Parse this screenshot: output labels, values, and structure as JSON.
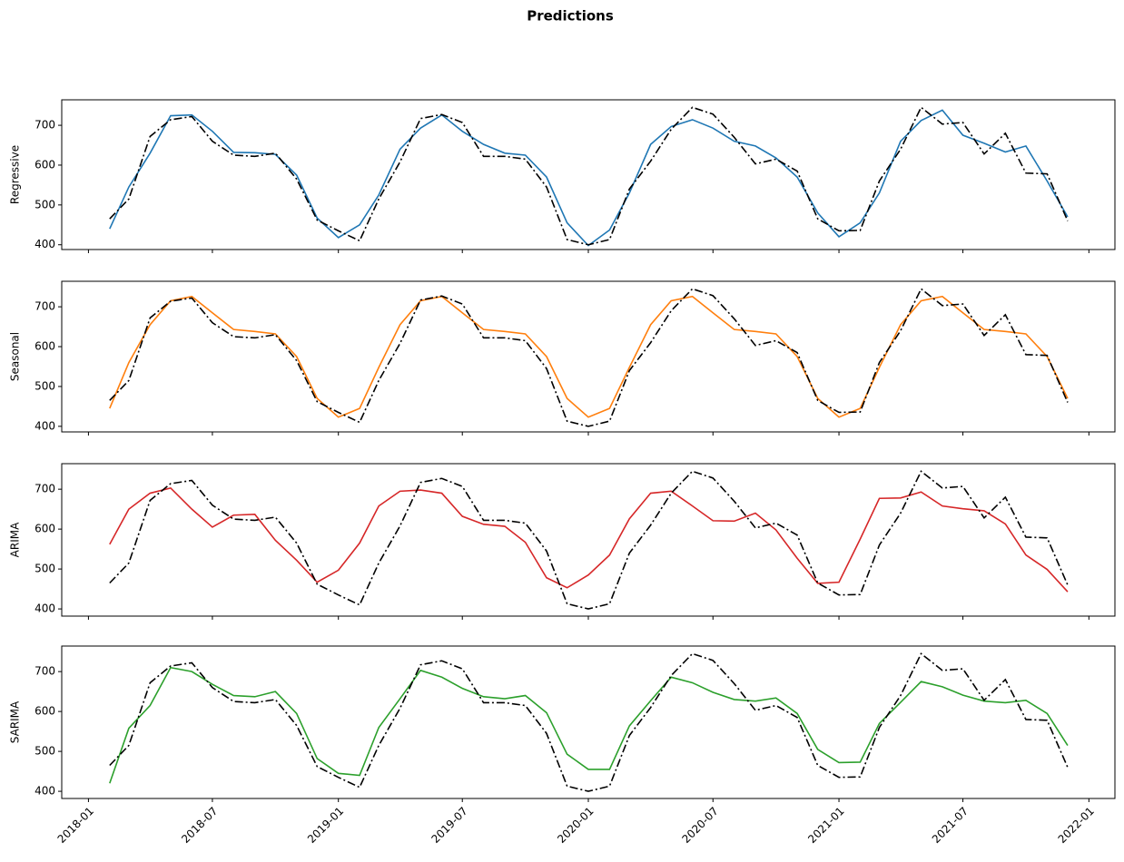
{
  "title": "Predictions",
  "chart_data": [
    {
      "type": "line",
      "ylabel": "Regressive",
      "x": [
        "2018-02",
        "2018-03",
        "2018-04",
        "2018-05",
        "2018-06",
        "2018-07",
        "2018-08",
        "2018-09",
        "2018-10",
        "2018-11",
        "2018-12",
        "2019-01",
        "2019-02",
        "2019-03",
        "2019-04",
        "2019-05",
        "2019-06",
        "2019-07",
        "2019-08",
        "2019-09",
        "2019-10",
        "2019-11",
        "2019-12",
        "2020-01",
        "2020-02",
        "2020-03",
        "2020-04",
        "2020-05",
        "2020-06",
        "2020-07",
        "2020-08",
        "2020-09",
        "2020-10",
        "2020-11",
        "2020-12",
        "2021-01",
        "2021-02",
        "2021-03",
        "2021-04",
        "2021-05",
        "2021-06",
        "2021-07",
        "2021-08",
        "2021-09",
        "2021-10",
        "2021-11",
        "2021-12"
      ],
      "series": [
        {
          "color": "#1f77b4",
          "style": "solid",
          "values": [
            440,
            545,
            630,
            724,
            726,
            685,
            632,
            631,
            627,
            575,
            467,
            418,
            450,
            525,
            640,
            693,
            726,
            685,
            652,
            630,
            625,
            570,
            455,
            398,
            437,
            530,
            652,
            697,
            714,
            693,
            660,
            648,
            618,
            570,
            480,
            420,
            455,
            530,
            660,
            712,
            738,
            675,
            655,
            633,
            648,
            560,
            470
          ]
        },
        {
          "color": "#000000",
          "style": "dashdot",
          "values": [
            465,
            515,
            672,
            714,
            722,
            660,
            625,
            622,
            630,
            565,
            462,
            435,
            410,
            515,
            608,
            717,
            727,
            707,
            622,
            622,
            615,
            545,
            413,
            400,
            413,
            540,
            610,
            690,
            745,
            728,
            670,
            603,
            615,
            585,
            465,
            435,
            436,
            560,
            640,
            745,
            703,
            707,
            628,
            680,
            580,
            578,
            460
          ]
        }
      ],
      "xlim": [
        "2017-11-23",
        "2022-02-08"
      ],
      "xticks": [
        "2018-01",
        "2018-07",
        "2019-01",
        "2019-07",
        "2020-01",
        "2020-07",
        "2021-01",
        "2021-07",
        "2022-01"
      ],
      "xticklabels": false,
      "ylim": [
        388,
        764
      ],
      "yticks": [
        400,
        500,
        600,
        700
      ]
    },
    {
      "type": "line",
      "ylabel": "Seasonal",
      "x": [
        "2018-02",
        "2018-03",
        "2018-04",
        "2018-05",
        "2018-06",
        "2018-07",
        "2018-08",
        "2018-09",
        "2018-10",
        "2018-11",
        "2018-12",
        "2019-01",
        "2019-02",
        "2019-03",
        "2019-04",
        "2019-05",
        "2019-06",
        "2019-07",
        "2019-08",
        "2019-09",
        "2019-10",
        "2019-11",
        "2019-12",
        "2020-01",
        "2020-02",
        "2020-03",
        "2020-04",
        "2020-05",
        "2020-06",
        "2020-07",
        "2020-08",
        "2020-09",
        "2020-10",
        "2020-11",
        "2020-12",
        "2021-01",
        "2021-02",
        "2021-03",
        "2021-04",
        "2021-05",
        "2021-06",
        "2021-07",
        "2021-08",
        "2021-09",
        "2021-10",
        "2021-11",
        "2021-12"
      ],
      "series": [
        {
          "color": "#ff7f0e",
          "style": "solid",
          "values": [
            445,
            560,
            655,
            715,
            726,
            685,
            643,
            638,
            632,
            575,
            470,
            423,
            445,
            548,
            655,
            715,
            726,
            685,
            643,
            638,
            632,
            575,
            470,
            423,
            445,
            548,
            655,
            715,
            726,
            685,
            643,
            638,
            632,
            575,
            470,
            423,
            445,
            548,
            655,
            715,
            726,
            685,
            643,
            638,
            632,
            575,
            470
          ]
        },
        {
          "color": "#000000",
          "style": "dashdot",
          "values": [
            465,
            515,
            672,
            714,
            722,
            660,
            625,
            622,
            630,
            565,
            462,
            435,
            410,
            515,
            608,
            717,
            727,
            707,
            622,
            622,
            615,
            545,
            413,
            400,
            413,
            540,
            610,
            690,
            745,
            728,
            670,
            603,
            615,
            585,
            465,
            435,
            436,
            560,
            640,
            745,
            703,
            707,
            628,
            680,
            580,
            578,
            460
          ]
        }
      ],
      "xlim": [
        "2017-11-23",
        "2022-02-08"
      ],
      "xticks": [
        "2018-01",
        "2018-07",
        "2019-01",
        "2019-07",
        "2020-01",
        "2020-07",
        "2021-01",
        "2021-07",
        "2022-01"
      ],
      "xticklabels": false,
      "ylim": [
        386,
        764
      ],
      "yticks": [
        400,
        500,
        600,
        700
      ]
    },
    {
      "type": "line",
      "ylabel": "ARIMA",
      "x": [
        "2018-02",
        "2018-03",
        "2018-04",
        "2018-05",
        "2018-06",
        "2018-07",
        "2018-08",
        "2018-09",
        "2018-10",
        "2018-11",
        "2018-12",
        "2019-01",
        "2019-02",
        "2019-03",
        "2019-04",
        "2019-05",
        "2019-06",
        "2019-07",
        "2019-08",
        "2019-09",
        "2019-10",
        "2019-11",
        "2019-12",
        "2020-01",
        "2020-02",
        "2020-03",
        "2020-04",
        "2020-05",
        "2020-06",
        "2020-07",
        "2020-08",
        "2020-09",
        "2020-10",
        "2020-11",
        "2020-12",
        "2021-01",
        "2021-02",
        "2021-03",
        "2021-04",
        "2021-05",
        "2021-06",
        "2021-07",
        "2021-08",
        "2021-09",
        "2021-10",
        "2021-11",
        "2021-12"
      ],
      "series": [
        {
          "color": "#d62728",
          "style": "solid",
          "values": [
            562,
            650,
            690,
            703,
            650,
            605,
            635,
            637,
            572,
            522,
            467,
            497,
            565,
            658,
            695,
            698,
            690,
            632,
            612,
            607,
            567,
            478,
            453,
            485,
            535,
            626,
            690,
            695,
            658,
            621,
            620,
            640,
            598,
            527,
            464,
            467,
            575,
            677,
            678,
            693,
            658,
            651,
            646,
            613,
            535,
            499,
            443
          ]
        },
        {
          "color": "#000000",
          "style": "dashdot",
          "values": [
            465,
            515,
            672,
            714,
            722,
            660,
            625,
            622,
            630,
            565,
            462,
            435,
            410,
            515,
            608,
            717,
            727,
            707,
            622,
            622,
            615,
            545,
            413,
            400,
            413,
            540,
            610,
            690,
            745,
            728,
            670,
            603,
            615,
            585,
            465,
            435,
            436,
            560,
            640,
            745,
            703,
            707,
            628,
            680,
            580,
            578,
            460
          ]
        }
      ],
      "xlim": [
        "2017-11-23",
        "2022-02-08"
      ],
      "xticks": [
        "2018-01",
        "2018-07",
        "2019-01",
        "2019-07",
        "2020-01",
        "2020-07",
        "2021-01",
        "2021-07",
        "2022-01"
      ],
      "xticklabels": false,
      "ylim": [
        382,
        764
      ],
      "yticks": [
        400,
        500,
        600,
        700
      ]
    },
    {
      "type": "line",
      "ylabel": "SARIMA",
      "x": [
        "2018-02",
        "2018-03",
        "2018-04",
        "2018-05",
        "2018-06",
        "2018-07",
        "2018-08",
        "2018-09",
        "2018-10",
        "2018-11",
        "2018-12",
        "2019-01",
        "2019-02",
        "2019-03",
        "2019-04",
        "2019-05",
        "2019-06",
        "2019-07",
        "2019-08",
        "2019-09",
        "2019-10",
        "2019-11",
        "2019-12",
        "2020-01",
        "2020-02",
        "2020-03",
        "2020-04",
        "2020-05",
        "2020-06",
        "2020-07",
        "2020-08",
        "2020-09",
        "2020-10",
        "2020-11",
        "2020-12",
        "2021-01",
        "2021-02",
        "2021-03",
        "2021-04",
        "2021-05",
        "2021-06",
        "2021-07",
        "2021-08",
        "2021-09",
        "2021-10",
        "2021-11",
        "2021-12"
      ],
      "series": [
        {
          "color": "#2ca02c",
          "style": "solid",
          "values": [
            420,
            558,
            615,
            710,
            700,
            668,
            640,
            637,
            650,
            595,
            482,
            445,
            440,
            560,
            632,
            703,
            686,
            658,
            637,
            632,
            640,
            597,
            493,
            455,
            455,
            564,
            627,
            686,
            672,
            648,
            630,
            626,
            634,
            595,
            505,
            472,
            473,
            570,
            623,
            675,
            662,
            641,
            626,
            622,
            628,
            595,
            515
          ]
        },
        {
          "color": "#000000",
          "style": "dashdot",
          "values": [
            465,
            515,
            672,
            714,
            722,
            660,
            625,
            622,
            630,
            565,
            462,
            435,
            410,
            515,
            608,
            717,
            727,
            707,
            622,
            622,
            615,
            545,
            413,
            400,
            413,
            540,
            610,
            690,
            745,
            728,
            670,
            603,
            615,
            585,
            465,
            435,
            436,
            560,
            640,
            745,
            703,
            707,
            628,
            680,
            580,
            578,
            460
          ]
        }
      ],
      "xlim": [
        "2017-11-23",
        "2022-02-08"
      ],
      "xticks": [
        "2018-01",
        "2018-07",
        "2019-01",
        "2019-07",
        "2020-01",
        "2020-07",
        "2021-01",
        "2021-07",
        "2022-01"
      ],
      "xticklabels": true,
      "ylim": [
        382,
        764
      ],
      "yticks": [
        400,
        500,
        600,
        700
      ]
    }
  ]
}
